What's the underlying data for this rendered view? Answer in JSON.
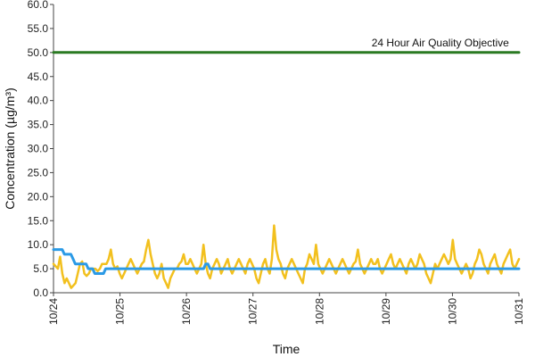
{
  "chart_data": {
    "type": "line",
    "xlabel": "Time",
    "ylabel": "Concentration (µg/m³)",
    "ylim": [
      0,
      60
    ],
    "ytick_values": [
      0,
      5,
      10,
      15,
      20,
      25,
      30,
      35,
      40,
      45,
      50,
      55,
      60
    ],
    "ytick_labels": [
      "0.0",
      "5.0",
      "10.0",
      "15.0",
      "20.0",
      "25.0",
      "30.0",
      "35.0",
      "40.0",
      "45.0",
      "50.0",
      "55.0",
      "60.0"
    ],
    "xlim": [
      0,
      7
    ],
    "xtick_values": [
      0,
      1,
      2,
      3,
      4,
      5,
      6,
      7
    ],
    "xtick_labels": [
      "10/24",
      "10/25",
      "10/26",
      "10/27",
      "10/28",
      "10/29",
      "10/30",
      "10/31"
    ],
    "grid": false,
    "legend": "none",
    "annotations": [
      {
        "text": "24 Hour Air Quality Objective",
        "x": 6.85,
        "y": 50
      }
    ],
    "series": [
      {
        "color": "#f2c01e",
        "x_step_days": 0.0417,
        "values": [
          6,
          5.5,
          5,
          7.5,
          4,
          2,
          3,
          2,
          1,
          1.5,
          2,
          4,
          6,
          6.5,
          4,
          3.5,
          4,
          5,
          5,
          5,
          4.5,
          5,
          6,
          6,
          6,
          7,
          9,
          6,
          5,
          5.5,
          4,
          3,
          4,
          5,
          6,
          7,
          6,
          5,
          4,
          5,
          6,
          6.5,
          9,
          11,
          8,
          6,
          4,
          3,
          4,
          6,
          3,
          2,
          1,
          3,
          4,
          5,
          5,
          6,
          6.5,
          8,
          6,
          6,
          7,
          6,
          5,
          4,
          5,
          6,
          10,
          6,
          4,
          3,
          5,
          6,
          7,
          6,
          4,
          5,
          6,
          7,
          5,
          4,
          5,
          6,
          7,
          6,
          5,
          4,
          6,
          7,
          6,
          5,
          3,
          2,
          4,
          6,
          7,
          5,
          4,
          7,
          14,
          9,
          7,
          6,
          4,
          3,
          5,
          6,
          7,
          6,
          5,
          4,
          3,
          2,
          5,
          6,
          8,
          7,
          6,
          10,
          6,
          5,
          4,
          5,
          6,
          7,
          6,
          5,
          4,
          5,
          6,
          7,
          6,
          5,
          4,
          5,
          6,
          6.5,
          9,
          6,
          5,
          4,
          5,
          6,
          7,
          6,
          6,
          7,
          5,
          4,
          5,
          6,
          7,
          8,
          6,
          5,
          6,
          7,
          6,
          5,
          4,
          6,
          7,
          6,
          5,
          6,
          8,
          7,
          6,
          4,
          3,
          2,
          4,
          6,
          5,
          6,
          7,
          8,
          7,
          6,
          7,
          11,
          7,
          6,
          5,
          4,
          5,
          6,
          5,
          3,
          4,
          6,
          7,
          9,
          8,
          6,
          5,
          4,
          6,
          7,
          8,
          6,
          5,
          4,
          6,
          7,
          8,
          9,
          6,
          5,
          6,
          7
        ],
        "line_width": 2.5
      },
      {
        "color": "#2b9ae6",
        "x_step_days": 0.0417,
        "values": [
          9,
          9,
          9,
          9,
          9,
          8,
          8,
          8,
          8,
          7,
          6,
          6,
          6,
          6,
          6,
          6,
          5,
          5,
          5,
          4,
          4,
          4,
          4,
          4,
          5,
          5,
          5,
          5,
          5,
          5,
          5,
          5,
          5,
          5,
          5,
          5,
          5,
          5,
          5,
          5,
          5,
          5,
          5,
          5,
          5,
          5,
          5,
          5,
          5,
          5,
          5,
          5,
          5,
          5,
          5,
          5,
          5,
          5,
          5,
          5,
          5,
          5,
          5,
          5,
          5,
          5,
          5,
          5,
          5,
          5,
          6,
          6,
          5,
          5,
          5,
          5,
          5,
          5,
          5,
          5,
          5,
          5,
          5,
          5,
          5,
          5,
          5,
          5,
          5,
          5,
          5,
          5,
          5,
          5,
          5,
          5,
          5,
          5,
          5,
          5,
          5,
          5,
          5,
          5,
          5,
          5,
          5,
          5,
          5,
          5,
          5,
          5,
          5,
          5,
          5,
          5,
          5,
          5,
          5,
          5,
          5,
          5,
          5,
          5,
          5,
          5,
          5,
          5,
          5,
          5,
          5,
          5,
          5,
          5,
          5,
          5,
          5,
          5,
          5,
          5,
          5,
          5,
          5,
          5,
          5,
          5,
          5,
          5,
          5,
          5,
          5,
          5,
          5,
          5,
          5,
          5,
          5,
          5,
          5,
          5,
          5,
          5,
          5,
          5,
          5,
          5,
          5,
          5,
          5,
          5,
          5,
          5,
          5,
          5,
          5,
          5,
          5,
          5,
          5,
          5,
          5,
          5,
          5,
          5,
          5,
          5,
          5,
          5,
          5,
          5,
          5,
          5,
          5,
          5,
          5,
          5,
          5,
          5,
          5,
          5,
          5,
          5,
          5,
          5,
          5,
          5,
          5,
          5,
          5,
          5,
          5,
          5,
          5,
          5,
          5
        ],
        "line_width": 3
      },
      {
        "color": "#2a7a22",
        "x": [
          0,
          7
        ],
        "values": [
          50,
          50
        ],
        "line_width": 3
      }
    ]
  }
}
